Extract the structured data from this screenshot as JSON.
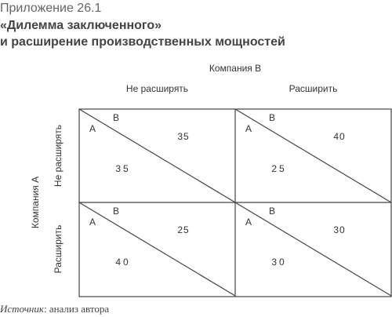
{
  "header": {
    "subtitle": "Приложение 26.1",
    "title_line1": "«Дилемма заключенного»",
    "title_line2": "и расширение производственных мощностей"
  },
  "matrix": {
    "column_player": "Компания B",
    "row_player": "Компания A",
    "columns": [
      "Не расширять",
      "Расширить"
    ],
    "rows": [
      "Не расширять",
      "Расширить"
    ],
    "cells": [
      [
        {
          "label_a": "A",
          "label_b": "B",
          "payoff_b": "35",
          "payoff_a": "35"
        },
        {
          "label_a": "A",
          "label_b": "B",
          "payoff_b": "40",
          "payoff_a": "25"
        }
      ],
      [
        {
          "label_a": "A",
          "label_b": "B",
          "payoff_b": "25",
          "payoff_a": "40"
        },
        {
          "label_a": "A",
          "label_b": "B",
          "payoff_b": "30",
          "payoff_a": "30"
        }
      ]
    ]
  },
  "source": {
    "label": "Источник",
    "text": ": анализ автора"
  }
}
